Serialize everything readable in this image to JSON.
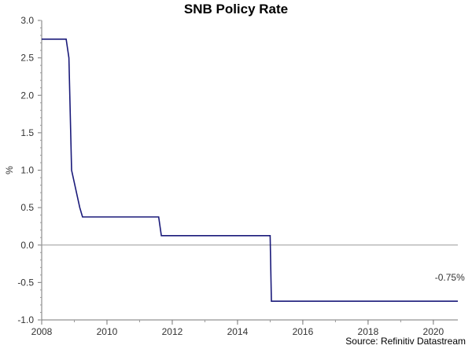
{
  "chart_data": {
    "type": "line",
    "title": "SNB Policy Rate",
    "ylabel": "%",
    "xlabel": "",
    "source": "Source: Refinitiv Datastream",
    "xlim": [
      2008.0,
      2020.75
    ],
    "ylim": [
      -1.0,
      3.0
    ],
    "x_ticks": [
      2008,
      2010,
      2012,
      2014,
      2016,
      2018,
      2020
    ],
    "y_ticks": [
      -1.0,
      -0.5,
      0.0,
      0.5,
      1.0,
      1.5,
      2.0,
      2.5,
      3.0
    ],
    "y_tick_labels": [
      "-1.0",
      "-0.5",
      "0.0",
      "0.5",
      "1.0",
      "1.5",
      "2.0",
      "2.5",
      "3.0"
    ],
    "grid": false,
    "zero_line": true,
    "line_color": "#1a1a7a",
    "annotation": {
      "text": "-0.75%",
      "x": 2020.6,
      "y": -0.75
    },
    "series": [
      {
        "x": [
          "2008-01",
          "2008-10",
          "2008-11",
          "2008-12",
          "2009-03",
          "2009-04",
          "2011-08",
          "2011-09",
          "2015-01-01",
          "2015-01-15",
          "2020-10"
        ],
        "values": [
          2.75,
          2.75,
          2.5,
          1.0,
          0.5,
          0.375,
          0.375,
          0.125,
          0.125,
          -0.75,
          -0.75
        ]
      }
    ]
  }
}
